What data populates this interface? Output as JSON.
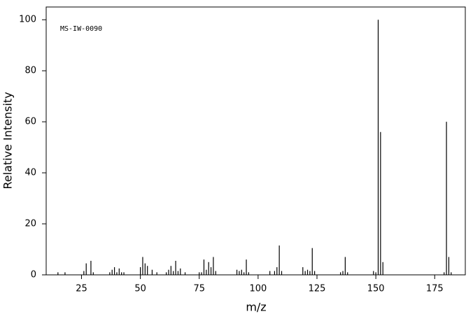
{
  "chart_data": {
    "type": "bar",
    "annotation": "MS-IW-0090",
    "xlabel": "m/z",
    "ylabel": "Relative Intensity",
    "x": [
      15,
      18,
      26,
      27,
      29,
      30,
      37,
      38,
      39,
      40,
      41,
      42,
      43,
      50,
      51,
      52,
      53,
      55,
      57,
      61,
      62,
      63,
      64,
      65,
      66,
      67,
      69,
      75,
      76,
      77,
      78,
      79,
      80,
      81,
      82,
      91,
      92,
      93,
      94,
      95,
      96,
      105,
      107,
      108,
      109,
      110,
      119,
      120,
      121,
      122,
      123,
      124,
      135,
      136,
      137,
      138,
      149,
      150,
      151,
      152,
      153,
      179,
      180,
      181,
      182
    ],
    "values": [
      1,
      1,
      1.5,
      4.5,
      5.5,
      1,
      1,
      2,
      3,
      1,
      2.5,
      1,
      1,
      3,
      7,
      4.5,
      3.5,
      2,
      1,
      1,
      2,
      3.5,
      1.5,
      5.5,
      1.5,
      2.5,
      1,
      1,
      1,
      6,
      2,
      5,
      3,
      7,
      1.5,
      2,
      1.5,
      2,
      1,
      6,
      1,
      1.5,
      1.5,
      3,
      11.5,
      1.5,
      3,
      1.5,
      2,
      1.5,
      10.5,
      1.5,
      1,
      1.5,
      7,
      1,
      1.5,
      1,
      100,
      56,
      5,
      1,
      60,
      7,
      1
    ],
    "color": "#000000",
    "xlim": [
      10,
      188
    ],
    "ylim": [
      0,
      105
    ],
    "xticks": [
      25,
      50,
      75,
      100,
      125,
      150,
      175
    ],
    "yticks": [
      0,
      20,
      40,
      60,
      80,
      100
    ]
  }
}
